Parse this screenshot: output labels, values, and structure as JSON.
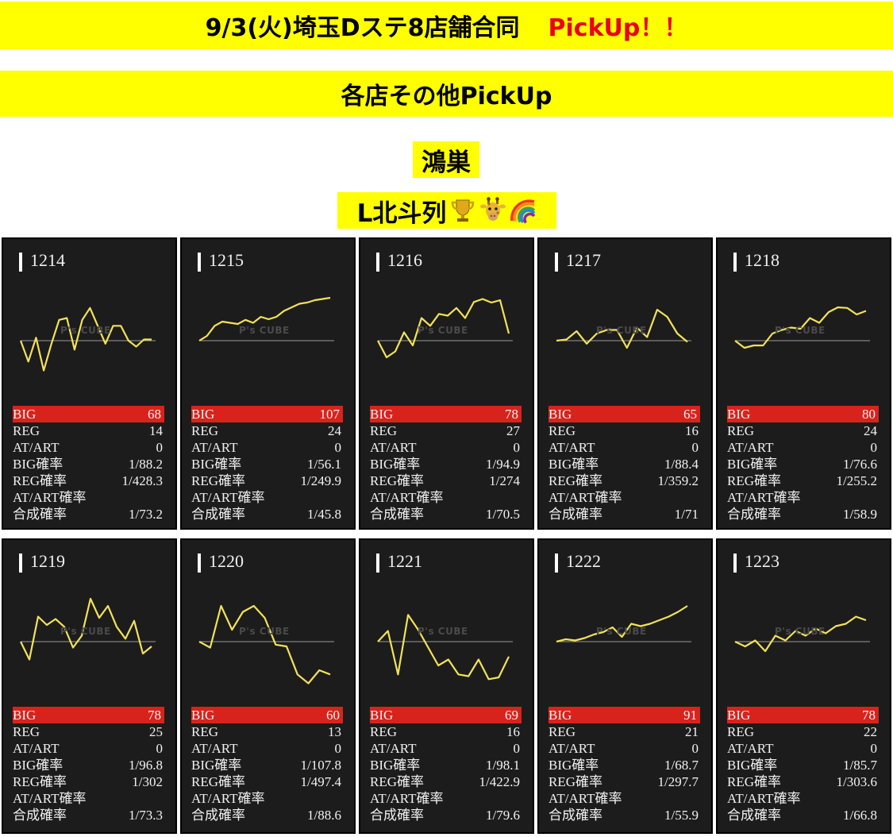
{
  "banner": {
    "title": "9/3(火)埼玉Dステ8店舗合同",
    "pickup": "PickUp！！",
    "subtitle": "各店その他PickUp"
  },
  "store": "鴻巣",
  "row_label": "L北斗列",
  "emojis": [
    "trophy-icon",
    "giraffe-icon",
    "rainbow-icon"
  ],
  "watermark": "P's CUBE",
  "labels": {
    "big": "BIG",
    "reg": "REG",
    "at": "AT/ART",
    "big_rate": "BIG確率",
    "reg_rate": "REG確率",
    "at_rate": "AT/ART確率",
    "combined": "合成確率"
  },
  "colors": {
    "banner": "#ffff00",
    "pickup": "#e8001c",
    "big_bar": "#d8231c",
    "line": "#f2e25a",
    "panel": "#1c1c1c"
  },
  "machines": [
    {
      "id": "1214",
      "big": "68",
      "reg": "14",
      "at": "0",
      "big_rate": "1/88.2",
      "reg_rate": "1/428.3",
      "at_rate": "",
      "combined": "1/73.2",
      "trend": [
        0,
        -35,
        5,
        -50,
        -5,
        35,
        38,
        -15,
        35,
        55,
        25,
        -5,
        25,
        25,
        0,
        -10,
        2,
        2
      ]
    },
    {
      "id": "1215",
      "big": "107",
      "reg": "24",
      "at": "0",
      "big_rate": "1/56.1",
      "reg_rate": "1/249.9",
      "at_rate": "",
      "combined": "1/45.8",
      "trend": [
        0,
        8,
        25,
        32,
        30,
        28,
        35,
        30,
        40,
        36,
        40,
        50,
        56,
        62,
        64,
        68,
        70,
        72
      ]
    },
    {
      "id": "1216",
      "big": "78",
      "reg": "27",
      "at": "0",
      "big_rate": "1/94.9",
      "reg_rate": "1/274",
      "at_rate": "",
      "combined": "1/70.5",
      "trend": [
        0,
        -28,
        -18,
        14,
        -8,
        38,
        25,
        45,
        42,
        55,
        38,
        65,
        70,
        64,
        68,
        12
      ]
    },
    {
      "id": "1217",
      "big": "65",
      "reg": "16",
      "at": "0",
      "big_rate": "1/88.4",
      "reg_rate": "1/359.2",
      "at_rate": "",
      "combined": "1/71",
      "trend": [
        0,
        2,
        16,
        -5,
        12,
        18,
        18,
        -12,
        22,
        6,
        52,
        40,
        12,
        -2
      ]
    },
    {
      "id": "1218",
      "big": "80",
      "reg": "24",
      "at": "0",
      "big_rate": "1/76.6",
      "reg_rate": "1/255.2",
      "at_rate": "",
      "combined": "1/58.9",
      "trend": [
        0,
        -12,
        -8,
        -8,
        12,
        18,
        22,
        20,
        38,
        30,
        48,
        56,
        55,
        44,
        50
      ]
    },
    {
      "id": "1219",
      "big": "78",
      "reg": "25",
      "at": "0",
      "big_rate": "1/96.8",
      "reg_rate": "1/302",
      "at_rate": "",
      "combined": "1/73.3",
      "trend": [
        0,
        -30,
        42,
        28,
        38,
        25,
        -10,
        10,
        72,
        40,
        60,
        25,
        5,
        35,
        -20,
        -8
      ]
    },
    {
      "id": "1220",
      "big": "60",
      "reg": "13",
      "at": "0",
      "big_rate": "1/107.8",
      "reg_rate": "1/497.4",
      "at_rate": "",
      "combined": "1/88.6",
      "trend": [
        0,
        -10,
        60,
        20,
        50,
        60,
        40,
        -5,
        -8,
        -55,
        -70,
        -48,
        -55
      ]
    },
    {
      "id": "1221",
      "big": "69",
      "reg": "16",
      "at": "0",
      "big_rate": "1/98.1",
      "reg_rate": "1/422.9",
      "at_rate": "",
      "combined": "1/79.6",
      "trend": [
        0,
        18,
        -55,
        45,
        20,
        -10,
        -40,
        -30,
        -55,
        -58,
        -30,
        -63,
        -60,
        -25
      ]
    },
    {
      "id": "1222",
      "big": "91",
      "reg": "21",
      "at": "0",
      "big_rate": "1/68.7",
      "reg_rate": "1/297.7",
      "at_rate": "",
      "combined": "1/55.9",
      "trend": [
        0,
        4,
        2,
        6,
        12,
        16,
        24,
        8,
        30,
        26,
        30,
        36,
        42,
        50,
        60
      ]
    },
    {
      "id": "1223",
      "big": "78",
      "reg": "22",
      "at": "0",
      "big_rate": "1/85.7",
      "reg_rate": "1/303.6",
      "at_rate": "",
      "combined": "1/66.8",
      "trend": [
        0,
        -8,
        2,
        -16,
        10,
        2,
        18,
        10,
        22,
        14,
        26,
        30,
        42,
        36
      ]
    }
  ]
}
